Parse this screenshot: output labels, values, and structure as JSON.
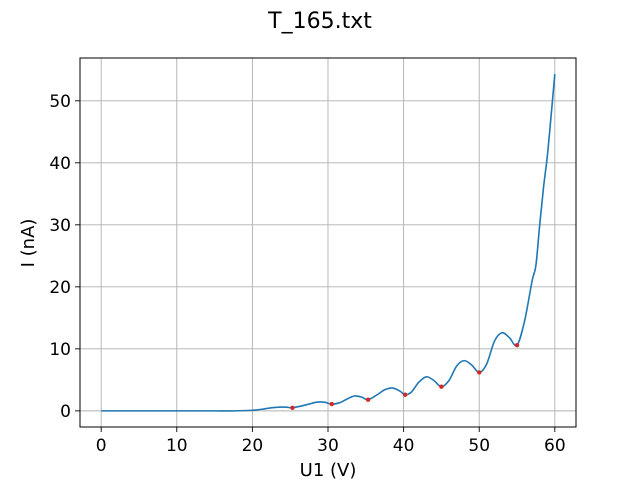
{
  "chart_data": {
    "type": "line",
    "title": "T_165.txt",
    "xlabel": "U1 (V)",
    "ylabel": "I (nA)",
    "xlim": [
      -2.8,
      62.8
    ],
    "ylim": [
      -2.6,
      56.9
    ],
    "xticks": [
      0,
      10,
      20,
      30,
      40,
      50,
      60
    ],
    "yticks": [
      0,
      10,
      20,
      30,
      40,
      50
    ],
    "grid": true,
    "line_color": "#1f77b4",
    "marker_color": "#d62728",
    "series": [
      {
        "x": [
          0,
          5,
          10,
          15,
          17.5,
          20,
          21.5,
          22.5,
          23.5,
          24.5,
          25.3,
          26.5,
          27.5,
          28.5,
          29.5,
          30.5,
          31.5,
          32.5,
          33.5,
          34.5,
          35.3,
          36.5,
          37.5,
          38.5,
          39.5,
          40.2,
          41.0,
          42.0,
          43.0,
          44.0,
          45.0,
          46.0,
          47.0,
          48.0,
          49.0,
          50.0,
          51.0,
          52.0,
          53.0,
          54.0,
          55.0,
          56.0,
          57.0,
          57.5,
          58.0,
          58.5,
          59.0,
          59.5,
          60.0
        ],
        "y": [
          0.0,
          0.0,
          0.0,
          0.0,
          0.0,
          0.1,
          0.3,
          0.5,
          0.6,
          0.6,
          0.5,
          0.8,
          1.1,
          1.4,
          1.4,
          1.1,
          1.3,
          1.9,
          2.4,
          2.2,
          1.8,
          2.6,
          3.4,
          3.7,
          3.2,
          2.6,
          3.0,
          4.6,
          5.5,
          4.9,
          3.9,
          4.9,
          7.2,
          8.1,
          7.4,
          6.2,
          7.6,
          11.2,
          12.6,
          11.8,
          10.6,
          14.5,
          21.0,
          23.5,
          30.0,
          36.0,
          41.0,
          47.5,
          54.3
        ]
      }
    ],
    "markers": {
      "x": [
        25.3,
        30.5,
        35.3,
        40.2,
        45.0,
        50.0,
        55.0
      ],
      "y": [
        0.5,
        1.1,
        1.8,
        2.6,
        3.9,
        6.2,
        10.6
      ]
    }
  }
}
